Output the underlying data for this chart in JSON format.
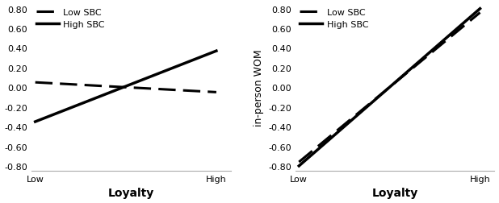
{
  "left_chart": {
    "low_sbc": {
      "x": [
        0,
        1
      ],
      "y": [
        0.05,
        -0.05
      ]
    },
    "high_sbc": {
      "x": [
        0,
        1
      ],
      "y": [
        -0.35,
        0.37
      ]
    },
    "ylabel": "",
    "xlabel": "Loyalty",
    "ylim": [
      -0.85,
      0.85
    ],
    "yticks": [
      -0.8,
      -0.6,
      -0.4,
      -0.2,
      0.0,
      0.2,
      0.4,
      0.6,
      0.8
    ],
    "ytick_labels": [
      "-0.80",
      "-0.60",
      "-0.40",
      "-0.20",
      "0.00",
      "0.20",
      "0.40",
      "0.60",
      "0.80"
    ],
    "xtick_labels": [
      "Low",
      "High"
    ],
    "legend_labels": [
      "Low SBC",
      "High SBC"
    ]
  },
  "right_chart": {
    "low_sbc": {
      "x": [
        0,
        1
      ],
      "y": [
        -0.76,
        0.76
      ]
    },
    "high_sbc": {
      "x": [
        0,
        1
      ],
      "y": [
        -0.8,
        0.8
      ]
    },
    "ylabel": "in-person WOM",
    "xlabel": "Loyalty",
    "ylim": [
      -0.85,
      0.85
    ],
    "yticks": [
      -0.8,
      -0.6,
      -0.4,
      -0.2,
      0.0,
      0.2,
      0.4,
      0.6,
      0.8
    ],
    "ytick_labels": [
      "-0.80",
      "-0.60",
      "-0.40",
      "-0.20",
      "0.00",
      "0.20",
      "0.40",
      "0.60",
      "0.80"
    ],
    "xtick_labels": [
      "Low",
      "High"
    ],
    "legend_labels": [
      "Low SBC",
      "High SBC"
    ]
  },
  "line_color": "#000000",
  "background_color": "#ffffff",
  "xlabel_fontsize": 10,
  "ylabel_fontsize": 9,
  "tick_fontsize": 8,
  "legend_fontsize": 8,
  "spine_color": "#aaaaaa"
}
